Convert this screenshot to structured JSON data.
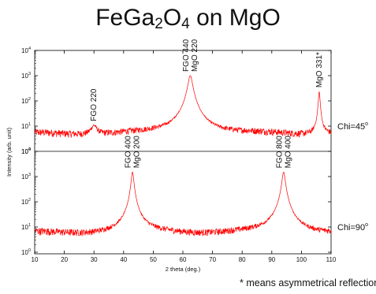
{
  "slide": {
    "title_main": "FeGa",
    "title_sub1": "2",
    "title_o": "O",
    "title_sub2": "4",
    "title_rest": " on MgO",
    "footnote": "* means asymmetrical reflection"
  },
  "chart_data": {
    "type": "line",
    "title": "FeGa2O4 on MgO",
    "xlabel": "2 theta (deg.)",
    "ylabel": "Intensity (arb. unit)",
    "xlim": [
      10,
      110
    ],
    "x_ticks": [
      10,
      20,
      30,
      40,
      50,
      60,
      70,
      80,
      90,
      100,
      110
    ],
    "y_scale": "log",
    "line_color": "#ff0000",
    "grid": false,
    "legend": "none",
    "panels": [
      {
        "label": "Chi=45",
        "label_sup": "o",
        "ylim": [
          1,
          10000
        ],
        "y_tick_exponents": [
          0,
          1,
          2,
          3,
          4
        ],
        "background_level": 5,
        "peaks": [
          {
            "x": 30,
            "height": 6,
            "width": 1.0,
            "label_lines": [
              "FGO 220"
            ]
          },
          {
            "x": 62.5,
            "height": 1000,
            "width": 0.7,
            "label_lines": [
              "FGO 440",
              "MgO 220"
            ]
          },
          {
            "x": 106,
            "height": 230,
            "width": 0.25,
            "label_lines": [
              "MgO 331*"
            ]
          }
        ]
      },
      {
        "label": "Chi=90",
        "label_sup": "o",
        "ylim": [
          1,
          10000
        ],
        "y_tick_exponents": [
          0,
          1,
          2,
          3,
          4
        ],
        "background_level": 6,
        "peaks": [
          {
            "x": 43,
            "height": 1500,
            "width": 0.4,
            "label_lines": [
              "FGO 400",
              "MgO 200"
            ]
          },
          {
            "x": 94,
            "height": 1500,
            "width": 0.5,
            "label_lines": [
              "FGO 800",
              "MgO 400"
            ]
          }
        ]
      }
    ]
  }
}
